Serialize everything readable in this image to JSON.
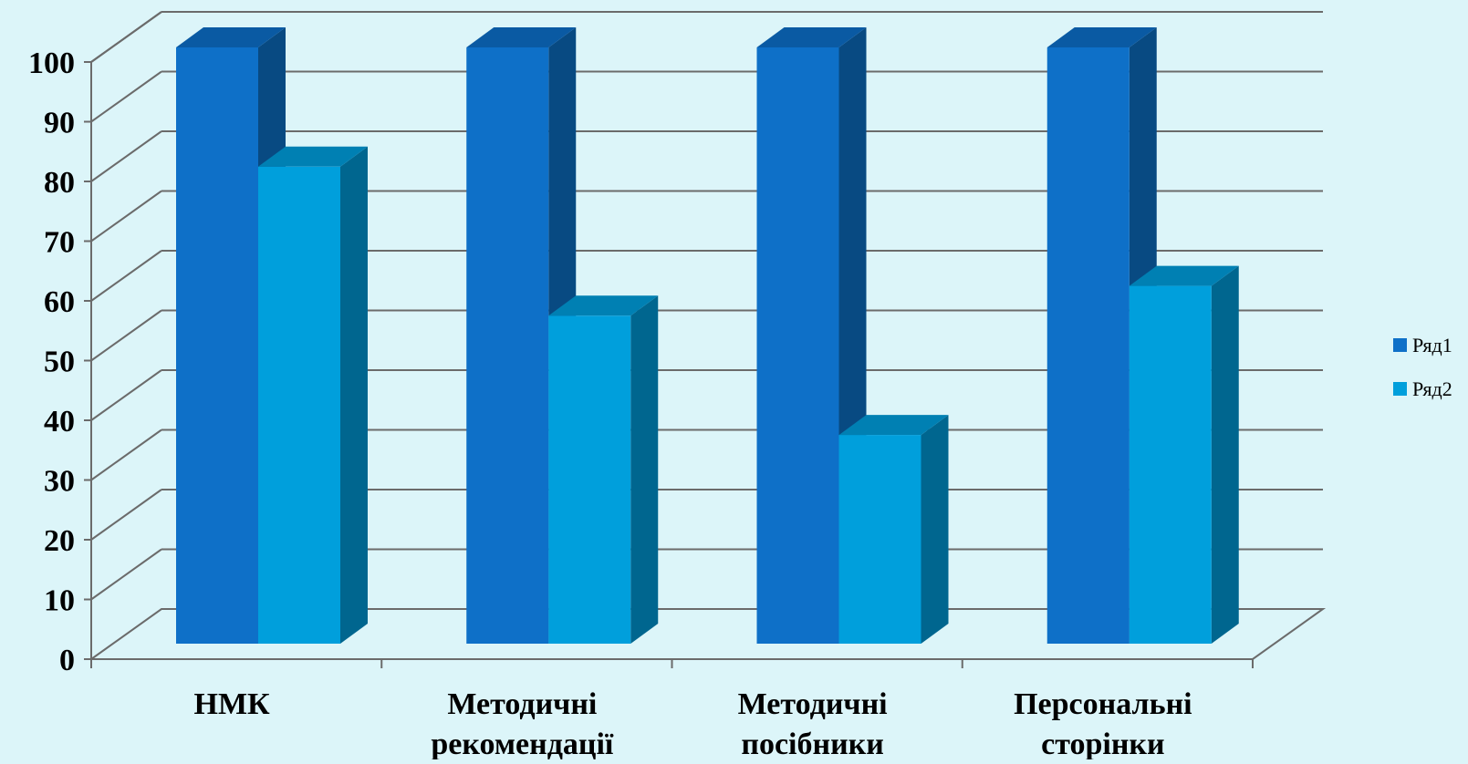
{
  "chart_data": {
    "type": "bar",
    "categories": [
      [
        "НМК"
      ],
      [
        "Методичні",
        "рекомендації"
      ],
      [
        "Методичні",
        "посібники"
      ],
      [
        "Персональні",
        "сторінки"
      ]
    ],
    "series": [
      {
        "name": "Ряд1",
        "values": [
          100,
          100,
          100,
          100
        ]
      },
      {
        "name": "Ряд2",
        "values": [
          80,
          55,
          35,
          60
        ]
      }
    ],
    "ylim": [
      0,
      100
    ],
    "yticks": [
      0,
      10,
      20,
      30,
      40,
      50,
      60,
      70,
      80,
      90,
      100
    ],
    "grid": true,
    "legend_position": "right",
    "title": "",
    "xlabel": "",
    "ylabel": "",
    "colors": {
      "background": "#dcf5f9",
      "grid": "#6b6b6b",
      "series1_front": "#0e70c8",
      "series1_side": "#084a82",
      "series1_top": "#0a5aa3",
      "series2_front": "#009fdc",
      "series2_side": "#00668f",
      "series2_top": "#0080b3"
    }
  }
}
